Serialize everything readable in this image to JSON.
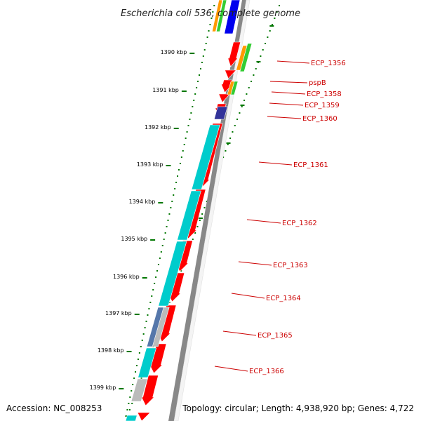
{
  "title": "Escherichia coli 536, complete genome",
  "accession": "Accession: NC_008253",
  "summary": "Topology: circular; Length: 4,938,920 bp; Genes: 4,722",
  "scale_labels": [
    "1390 kbp",
    "1391 kbp",
    "1392 kbp",
    "1393 kbp",
    "1394 kbp",
    "1395 kbp",
    "1396 kbp",
    "1397 kbp",
    "1398 kbp",
    "1399 kbp"
  ],
  "genes": [
    {
      "label": "ECP_1356"
    },
    {
      "label": "pspB"
    },
    {
      "label": "ECP_1358"
    },
    {
      "label": "ECP_1359"
    },
    {
      "label": "ECP_1360"
    },
    {
      "label": "ECP_1361"
    },
    {
      "label": "ECP_1362"
    },
    {
      "label": "ECP_1363"
    },
    {
      "label": "ECP_1364"
    },
    {
      "label": "ECP_1365"
    },
    {
      "label": "ECP_1366"
    }
  ],
  "colors": {
    "cds": "#ff0000",
    "orf": "#00cccc",
    "gene_label": "#cc0000",
    "backbone": "#888888",
    "ticks": "#007700",
    "orange": "#ff9900",
    "green": "#33cc33",
    "blue": "#0000ee",
    "navy": "#333399",
    "steel": "#5577aa",
    "gray": "#bbbbbb"
  }
}
